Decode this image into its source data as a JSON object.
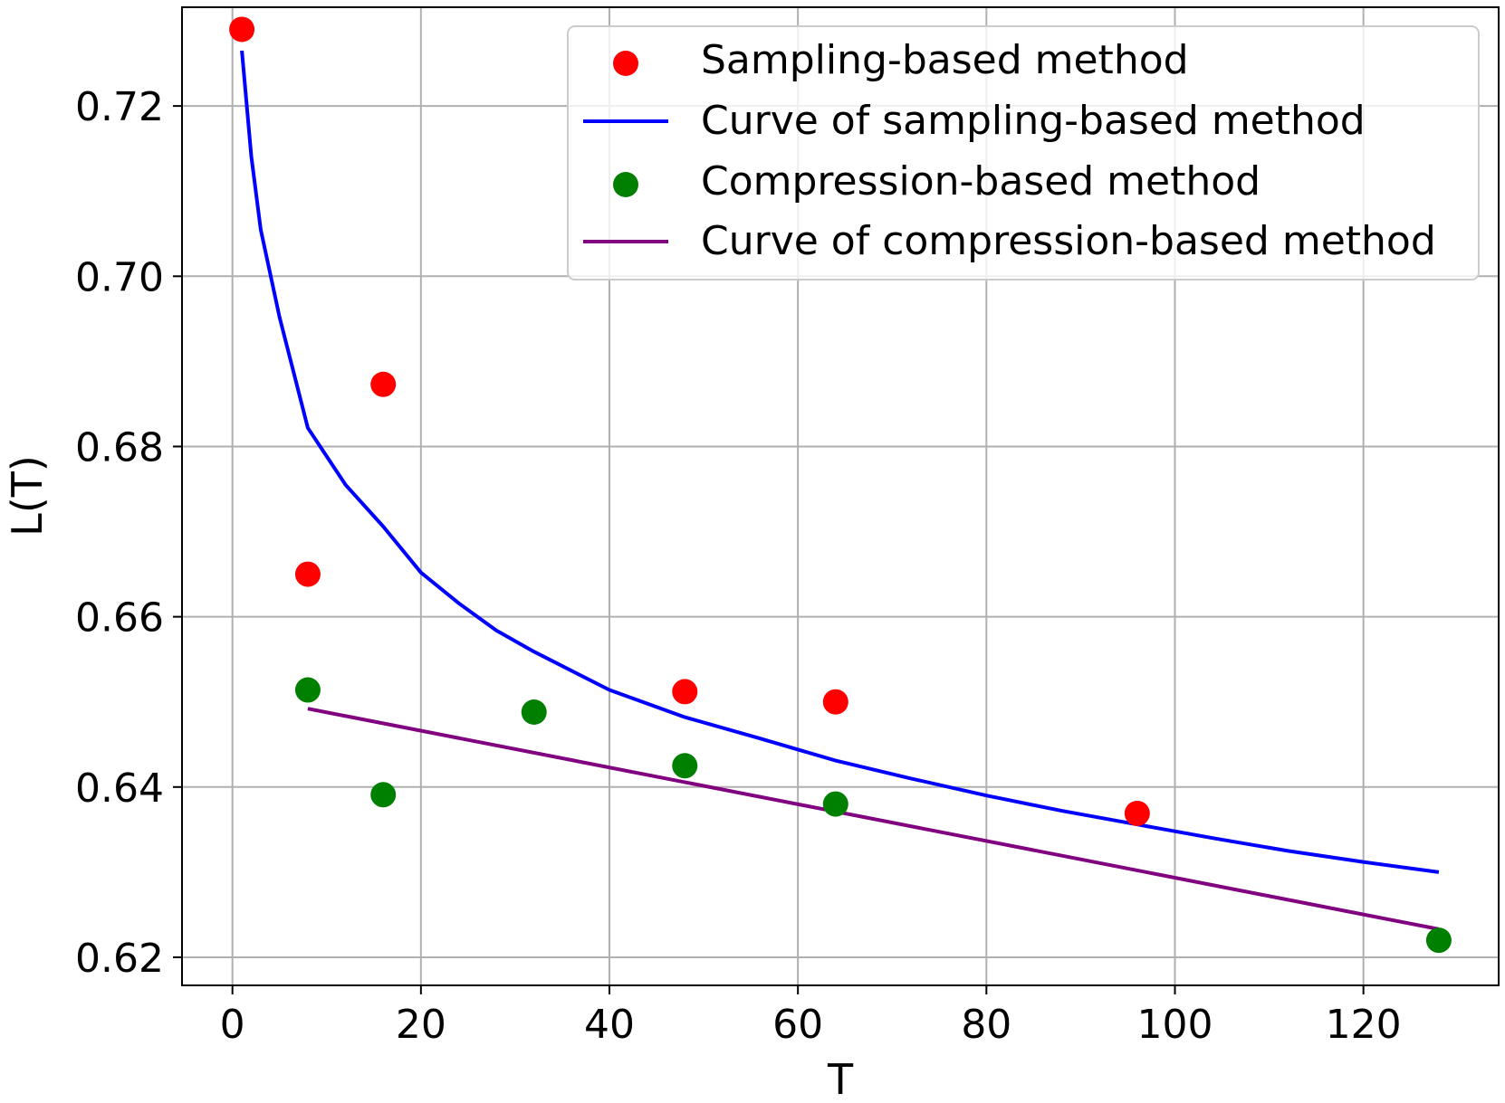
{
  "chart_data": {
    "type": "scatter",
    "title": "",
    "xlabel": "T",
    "ylabel": "L(T)",
    "xlim": [
      -5.35,
      134.35
    ],
    "ylim": [
      0.6167,
      0.7316
    ],
    "xticks": [
      0,
      20,
      40,
      60,
      80,
      100,
      120
    ],
    "xtick_labels": [
      "0",
      "20",
      "40",
      "60",
      "80",
      "100",
      "120"
    ],
    "yticks": [
      0.62,
      0.64,
      0.66,
      0.68,
      0.7,
      0.72
    ],
    "ytick_labels": [
      "0.62",
      "0.64",
      "0.66",
      "0.68",
      "0.70",
      "0.72"
    ],
    "grid": true,
    "legend_position": "top-right",
    "series": [
      {
        "name": "Sampling-based method",
        "kind": "scatter",
        "color": "#ff0000",
        "points": [
          [
            1,
            0.729
          ],
          [
            8,
            0.665
          ],
          [
            16,
            0.6873
          ],
          [
            48,
            0.6512
          ],
          [
            64,
            0.65
          ],
          [
            96,
            0.6369
          ]
        ]
      },
      {
        "name": "Curve of sampling-based method",
        "kind": "line",
        "color": "#0000ff",
        "points": [
          [
            1,
            0.7265
          ],
          [
            2,
            0.7141
          ],
          [
            3,
            0.7055
          ],
          [
            5,
            0.6952
          ],
          [
            8,
            0.6822
          ],
          [
            12,
            0.6755
          ],
          [
            16,
            0.6706
          ],
          [
            20,
            0.6652
          ],
          [
            24,
            0.6616
          ],
          [
            28,
            0.6584
          ],
          [
            32,
            0.6559
          ],
          [
            40,
            0.6514
          ],
          [
            48,
            0.6482
          ],
          [
            56,
            0.6457
          ],
          [
            64,
            0.6431
          ],
          [
            72,
            0.641
          ],
          [
            80,
            0.639
          ],
          [
            88,
            0.6372
          ],
          [
            96,
            0.6356
          ],
          [
            104,
            0.634
          ],
          [
            112,
            0.6325
          ],
          [
            120,
            0.6312
          ],
          [
            128,
            0.63
          ]
        ]
      },
      {
        "name": "Compression-based method",
        "kind": "scatter",
        "color": "#008000",
        "points": [
          [
            8,
            0.6514
          ],
          [
            16,
            0.6391
          ],
          [
            32,
            0.6488
          ],
          [
            48,
            0.6425
          ],
          [
            64,
            0.638
          ],
          [
            128,
            0.622
          ]
        ]
      },
      {
        "name": "Curve of compression-based method",
        "kind": "line",
        "color": "#800080",
        "points": [
          [
            8,
            0.6492
          ],
          [
            128,
            0.6233
          ]
        ]
      }
    ]
  }
}
